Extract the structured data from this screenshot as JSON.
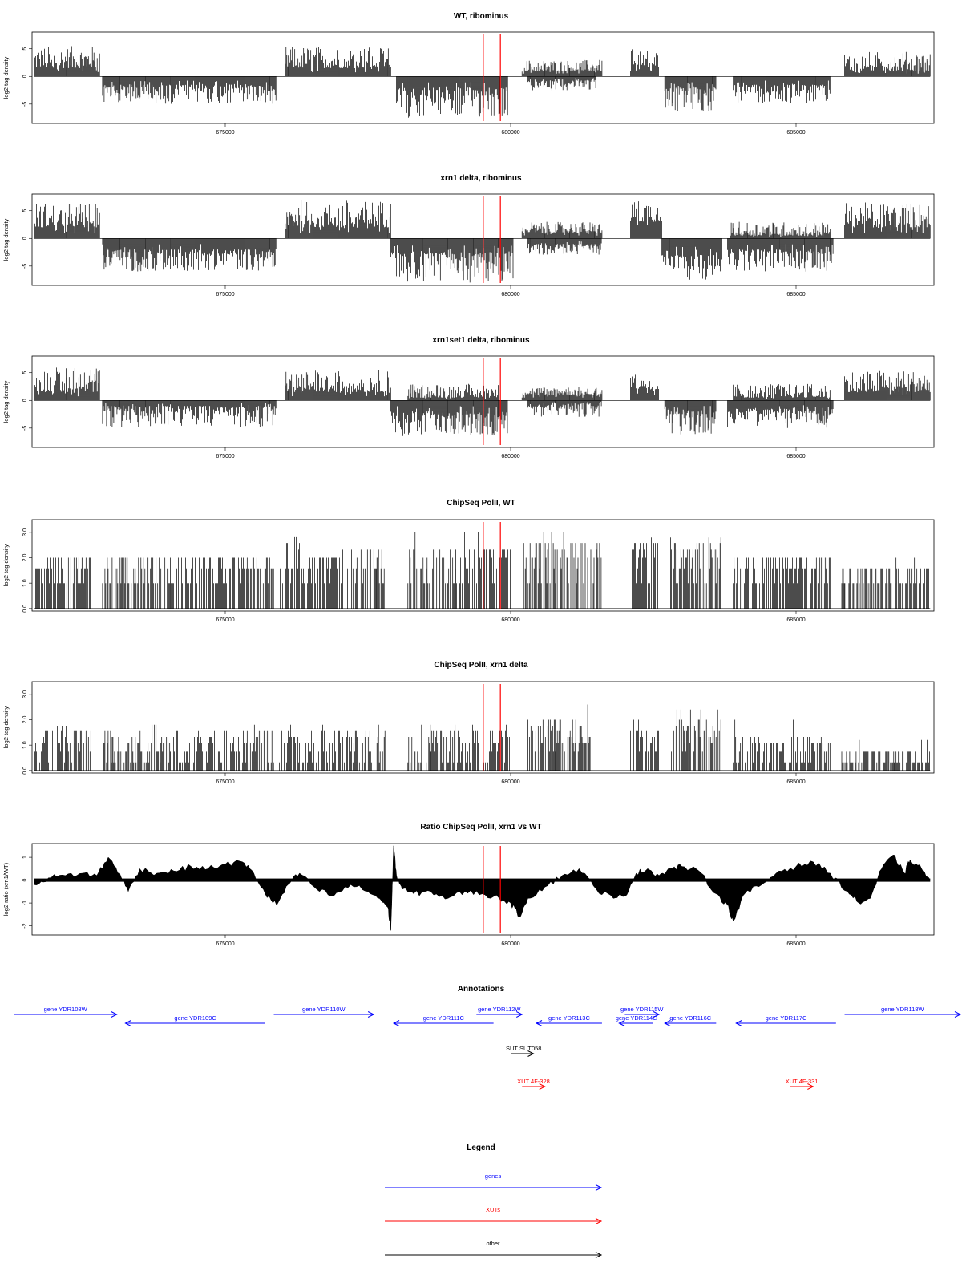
{
  "chart_data": [
    {
      "type": "bar",
      "title": "WT, ribominus",
      "ylabel": "log2 tag density",
      "yticks": [
        -5,
        0,
        5
      ],
      "ylim": [
        -8.5,
        8
      ],
      "xlim": [
        671500,
        687500
      ],
      "xticks": [
        675000,
        680000,
        685000
      ],
      "markers": [
        679520,
        679820
      ],
      "segments": [
        {
          "x0": 671650,
          "x1": 672800,
          "min": 1.5,
          "max": 5.5,
          "sign": 1
        },
        {
          "x0": 672850,
          "x1": 675900,
          "min": 1.5,
          "max": 5,
          "sign": -1
        },
        {
          "x0": 676050,
          "x1": 677900,
          "min": 1.5,
          "max": 5.5,
          "sign": 1
        },
        {
          "x0": 678000,
          "x1": 679950,
          "min": 2,
          "max": 7.5,
          "sign": -1
        },
        {
          "x0": 680200,
          "x1": 681600,
          "min": 1,
          "max": 3,
          "sign": 1
        },
        {
          "x0": 680300,
          "x1": 681500,
          "min": 0.5,
          "max": 2.5,
          "sign": -1
        },
        {
          "x0": 682100,
          "x1": 682600,
          "min": 2,
          "max": 5,
          "sign": 1
        },
        {
          "x0": 682700,
          "x1": 683600,
          "min": 2,
          "max": 6.5,
          "sign": -1
        },
        {
          "x0": 683900,
          "x1": 685600,
          "min": 1.5,
          "max": 5,
          "sign": -1
        },
        {
          "x0": 685850,
          "x1": 687350,
          "min": 1,
          "max": 4.5,
          "sign": 1
        }
      ]
    },
    {
      "type": "bar",
      "title": "xrn1 delta, ribominus",
      "ylabel": "log2 tag density",
      "yticks": [
        -5,
        0,
        5
      ],
      "ylim": [
        -8.5,
        8
      ],
      "xlim": [
        671500,
        687500
      ],
      "xticks": [
        675000,
        680000,
        685000
      ],
      "markers": [
        679520,
        679820
      ],
      "segments": [
        {
          "x0": 671650,
          "x1": 672800,
          "min": 2,
          "max": 6.5,
          "sign": 1
        },
        {
          "x0": 672850,
          "x1": 675900,
          "min": 2,
          "max": 6,
          "sign": -1
        },
        {
          "x0": 676050,
          "x1": 677900,
          "min": 2,
          "max": 7,
          "sign": 1
        },
        {
          "x0": 677900,
          "x1": 680050,
          "min": 2.5,
          "max": 8,
          "sign": -1
        },
        {
          "x0": 680200,
          "x1": 681600,
          "min": 1,
          "max": 3,
          "sign": 1
        },
        {
          "x0": 680300,
          "x1": 681600,
          "min": 1,
          "max": 3,
          "sign": -1
        },
        {
          "x0": 682100,
          "x1": 682650,
          "min": 3,
          "max": 7,
          "sign": 1
        },
        {
          "x0": 682650,
          "x1": 683700,
          "min": 3,
          "max": 7.5,
          "sign": -1
        },
        {
          "x0": 683800,
          "x1": 685650,
          "min": 2,
          "max": 6,
          "sign": -1
        },
        {
          "x0": 683850,
          "x1": 685600,
          "min": 0.5,
          "max": 3,
          "sign": 1
        },
        {
          "x0": 685850,
          "x1": 687350,
          "min": 2,
          "max": 6.5,
          "sign": 1
        }
      ]
    },
    {
      "type": "bar",
      "title": "xrn1set1 delta, ribominus",
      "ylabel": "log2 tag density",
      "yticks": [
        -5,
        0,
        5
      ],
      "ylim": [
        -8.5,
        8
      ],
      "xlim": [
        671500,
        687500
      ],
      "xticks": [
        675000,
        680000,
        685000
      ],
      "markers": [
        679520,
        679820
      ],
      "segments": [
        {
          "x0": 671650,
          "x1": 672800,
          "min": 1.5,
          "max": 6,
          "sign": 1
        },
        {
          "x0": 672850,
          "x1": 675900,
          "min": 1,
          "max": 5,
          "sign": -1
        },
        {
          "x0": 676050,
          "x1": 677900,
          "min": 1.5,
          "max": 5.5,
          "sign": 1
        },
        {
          "x0": 677900,
          "x1": 679950,
          "min": 2,
          "max": 6.5,
          "sign": -1
        },
        {
          "x0": 678200,
          "x1": 679800,
          "min": 0.5,
          "max": 3,
          "sign": 1
        },
        {
          "x0": 680200,
          "x1": 681600,
          "min": 1,
          "max": 2.5,
          "sign": 1
        },
        {
          "x0": 680300,
          "x1": 681600,
          "min": 0.5,
          "max": 3,
          "sign": -1
        },
        {
          "x0": 682100,
          "x1": 682600,
          "min": 2,
          "max": 5,
          "sign": 1
        },
        {
          "x0": 682700,
          "x1": 683600,
          "min": 2,
          "max": 6.5,
          "sign": -1
        },
        {
          "x0": 683800,
          "x1": 685650,
          "min": 1.5,
          "max": 5,
          "sign": -1
        },
        {
          "x0": 683900,
          "x1": 685600,
          "min": 0.5,
          "max": 3,
          "sign": 1
        },
        {
          "x0": 685850,
          "x1": 687350,
          "min": 1.5,
          "max": 5.5,
          "sign": 1
        }
      ]
    },
    {
      "type": "bar",
      "title": "ChipSeq PolII, WT",
      "ylabel": "log2 tag density",
      "yticks": [
        0,
        1,
        2,
        3
      ],
      "ytick_labels": [
        "0.0",
        "1.0",
        "2.0",
        "3.0"
      ],
      "ylim": [
        -0.1,
        3.5
      ],
      "xlim": [
        671500,
        687500
      ],
      "xticks": [
        675000,
        680000,
        685000
      ],
      "markers": [
        679520,
        679820
      ],
      "segments": [
        {
          "x0": 671650,
          "x1": 672650,
          "min": 0.5,
          "max": 2,
          "sign": 1,
          "levels": [
            1,
            1.58,
            2
          ]
        },
        {
          "x0": 672850,
          "x1": 675850,
          "min": 0.5,
          "max": 2,
          "sign": 1,
          "levels": [
            1,
            1.58,
            2
          ]
        },
        {
          "x0": 675950,
          "x1": 676300,
          "min": 1,
          "max": 3,
          "sign": 1,
          "levels": [
            1,
            1.58,
            2,
            2.32,
            2.58,
            2.81
          ]
        },
        {
          "x0": 676300,
          "x1": 677000,
          "min": 0.5,
          "max": 2,
          "sign": 1,
          "levels": [
            1,
            1.58,
            2
          ]
        },
        {
          "x0": 677000,
          "x1": 677800,
          "min": 1,
          "max": 2.8,
          "sign": 1,
          "levels": [
            1,
            1.58,
            2,
            2.32
          ]
        },
        {
          "x0": 678200,
          "x1": 680000,
          "min": 1,
          "max": 3,
          "sign": 1,
          "levels": [
            1,
            1.58,
            2,
            2.32
          ]
        },
        {
          "x0": 680200,
          "x1": 681600,
          "min": 1,
          "max": 3,
          "sign": 1,
          "levels": [
            1,
            1.58,
            2,
            2.32,
            2.58
          ]
        },
        {
          "x0": 682100,
          "x1": 682600,
          "min": 1,
          "max": 2.8,
          "sign": 1,
          "levels": [
            1,
            1.58,
            2,
            2.32,
            2.58
          ]
        },
        {
          "x0": 682800,
          "x1": 683700,
          "min": 1,
          "max": 2.8,
          "sign": 1,
          "levels": [
            1,
            1.58,
            2,
            2.32,
            2.58
          ]
        },
        {
          "x0": 683900,
          "x1": 685600,
          "min": 0.5,
          "max": 2,
          "sign": 1,
          "levels": [
            1,
            1.58,
            2
          ]
        },
        {
          "x0": 685800,
          "x1": 687350,
          "min": 0.5,
          "max": 2,
          "sign": 1,
          "levels": [
            1,
            1.58
          ]
        }
      ]
    },
    {
      "type": "bar",
      "title": "ChipSeq PolII, xrn1 delta",
      "ylabel": "log2 tag density",
      "yticks": [
        0,
        1,
        2,
        3
      ],
      "ytick_labels": [
        "0.0",
        "1.0",
        "2.0",
        "3.0"
      ],
      "ylim": [
        -0.1,
        3.5
      ],
      "xlim": [
        671500,
        687500
      ],
      "xticks": [
        675000,
        680000,
        685000
      ],
      "markers": [
        679520,
        679820
      ],
      "segments": [
        {
          "x0": 671650,
          "x1": 672650,
          "min": 0.3,
          "max": 2,
          "sign": 1,
          "levels": [
            0.32,
            0.74,
            1.1,
            1.32,
            1.58,
            1.74
          ]
        },
        {
          "x0": 672850,
          "x1": 675850,
          "min": 0.3,
          "max": 1.8,
          "sign": 1,
          "levels": [
            0.32,
            0.74,
            1.1,
            1.32,
            1.58
          ]
        },
        {
          "x0": 675950,
          "x1": 677800,
          "min": 0.3,
          "max": 1.8,
          "sign": 1,
          "levels": [
            0.32,
            0.74,
            1.1,
            1.32,
            1.58
          ]
        },
        {
          "x0": 678200,
          "x1": 680000,
          "min": 0.3,
          "max": 1.8,
          "sign": 1,
          "levels": [
            0.32,
            0.74,
            1.1,
            1.32,
            1.58
          ]
        },
        {
          "x0": 680300,
          "x1": 681400,
          "min": 0.5,
          "max": 2.6,
          "sign": 1,
          "levels": [
            0.74,
            1.1,
            1.32,
            1.58,
            1.74,
            2
          ]
        },
        {
          "x0": 682100,
          "x1": 682600,
          "min": 0.5,
          "max": 2.6,
          "sign": 1,
          "levels": [
            0.74,
            1.1,
            1.32,
            1.58,
            2
          ]
        },
        {
          "x0": 682800,
          "x1": 683700,
          "min": 0.5,
          "max": 2.4,
          "sign": 1,
          "levels": [
            0.74,
            1.1,
            1.32,
            1.58,
            1.74,
            2
          ]
        },
        {
          "x0": 683900,
          "x1": 685600,
          "min": 0.3,
          "max": 2,
          "sign": 1,
          "levels": [
            0.32,
            0.74,
            1.1,
            1.32
          ]
        },
        {
          "x0": 685800,
          "x1": 687350,
          "min": 0.3,
          "max": 1.2,
          "sign": 1,
          "levels": [
            0.32,
            0.74
          ]
        }
      ]
    },
    {
      "type": "area",
      "title": "Ratio ChipSeq PolII, xrn1 vs WT",
      "ylabel": "log2 ratio (xrn1/WT)",
      "yticks": [
        -2,
        -1,
        0,
        1
      ],
      "ylim": [
        -2.4,
        1.6
      ],
      "xlim": [
        671500,
        687500
      ],
      "xticks": [
        675000,
        680000,
        685000
      ],
      "markers": [
        679520,
        679820
      ],
      "x": [
        671650,
        671900,
        672200,
        672500,
        672750,
        672950,
        673150,
        673300,
        673500,
        673800,
        674100,
        674400,
        674700,
        675000,
        675300,
        675500,
        675700,
        675900,
        676100,
        676300,
        676600,
        676900,
        677200,
        677500,
        677700,
        677850,
        677900,
        677950,
        678000,
        678100,
        678300,
        678600,
        678900,
        679200,
        679500,
        679800,
        680000,
        680150,
        680300,
        680600,
        680900,
        681200,
        681500,
        681800,
        682000,
        682200,
        682400,
        682600,
        682800,
        683000,
        683300,
        683600,
        683800,
        683900,
        684100,
        684400,
        684700,
        685000,
        685300,
        685600,
        685900,
        686100,
        686300,
        686500,
        686700,
        686900,
        687000,
        687200,
        687350
      ],
      "y": [
        -0.2,
        0.1,
        0.2,
        0.3,
        0.2,
        1.0,
        0.3,
        -0.5,
        0.5,
        0.3,
        0.4,
        0.6,
        0.5,
        0.7,
        0.8,
        0.3,
        -0.6,
        -1.1,
        -0.2,
        0.3,
        -0.4,
        -0.7,
        -0.2,
        -0.5,
        -0.8,
        -1.2,
        -2.2,
        1.5,
        0.2,
        -0.4,
        -0.6,
        -0.5,
        -0.8,
        -0.5,
        -0.6,
        -0.8,
        -1.0,
        -1.6,
        -0.8,
        -0.3,
        0.2,
        0.5,
        -0.4,
        -0.8,
        -0.7,
        0.3,
        0.5,
        0.2,
        0.5,
        0.6,
        0.4,
        -0.6,
        -1.1,
        -1.8,
        -0.6,
        -0.2,
        0.4,
        0.6,
        0.8,
        0.3,
        -0.5,
        -1.0,
        -0.8,
        0.5,
        1.1,
        0.3,
        0.9,
        0.5,
        0.0
      ]
    }
  ],
  "annotations": {
    "title": "Annotations",
    "genes": [
      {
        "label": "gene YDR108W",
        "x0": 671300,
        "x1": 673100,
        "dir": "right",
        "row": 0
      },
      {
        "label": "gene YDR109C",
        "x0": 673250,
        "x1": 675700,
        "dir": "left",
        "row": 1
      },
      {
        "label": "gene YDR110W",
        "x0": 675850,
        "x1": 677600,
        "dir": "right",
        "row": 0
      },
      {
        "label": "gene YDR111C",
        "x0": 677950,
        "x1": 679700,
        "dir": "left",
        "row": 1
      },
      {
        "label": "gene YDR112W",
        "x0": 679400,
        "x1": 680200,
        "dir": "right",
        "row": 0
      },
      {
        "label": "gene YDR113C",
        "x0": 680450,
        "x1": 681600,
        "dir": "left",
        "row": 1
      },
      {
        "label": "gene YDR114C",
        "x0": 681900,
        "x1": 682500,
        "dir": "left",
        "row": 1
      },
      {
        "label": "gene YDR115W",
        "x0": 682000,
        "x1": 682600,
        "dir": "right",
        "row": 0
      },
      {
        "label": "gene YDR116C",
        "x0": 682700,
        "x1": 683600,
        "dir": "left",
        "row": 1
      },
      {
        "label": "gene YDR117C",
        "x0": 683950,
        "x1": 685700,
        "dir": "left",
        "row": 1
      },
      {
        "label": "gene YDR118W",
        "x0": 685850,
        "x1": 688200,
        "dir": "right",
        "row": 0
      }
    ],
    "other": [
      {
        "label": "SUT SUT058",
        "x0": 680000,
        "x1": 680400,
        "dir": "right"
      }
    ],
    "xuts": [
      {
        "label": "XUT 4F-328",
        "x0": 680200,
        "x1": 680600,
        "dir": "right"
      },
      {
        "label": "XUT 4F-331",
        "x0": 684900,
        "x1": 685300,
        "dir": "right"
      }
    ]
  },
  "legend": {
    "title": "Legend",
    "items": [
      {
        "label": "genes",
        "color": "#0000ff"
      },
      {
        "label": "XUTs",
        "color": "#ff0000"
      },
      {
        "label": "other",
        "color": "#000000"
      }
    ]
  },
  "colors": {
    "gene": "#0000ff",
    "xut": "#ff0000",
    "other": "#000000",
    "marker": "#ff0000",
    "bar": "#000000"
  }
}
